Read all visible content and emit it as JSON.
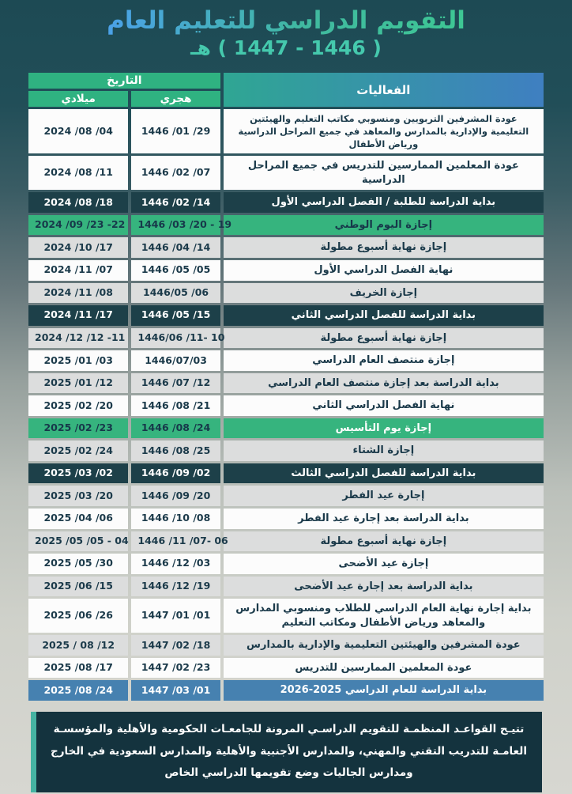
{
  "title": {
    "main": "التقويم الدراسي للتعليم العام",
    "years": "( 1446 - 1447 ) هـ"
  },
  "table": {
    "header": {
      "date_group": "التاريخ",
      "gregorian": "ميلادي",
      "hijri": "هجري",
      "events": "الفعاليات"
    },
    "rows": [
      {
        "gregorian": "2024 /08 /04",
        "hijri": "1446 /01 /29",
        "event": "عودة المشرفين التربويين ومنسوبي مكاتب التعليم والهيئتين التعليمية والإدارية بالمدارس والمعاهد في جميع المراحل الدراسية ورياض الأطفال",
        "style": "white",
        "small": true
      },
      {
        "gregorian": "2024 /08 /11",
        "hijri": "1446 /02 /07",
        "event": "عودة المعلمين الممارسين للتدريس في جميع المراحل الدراسية",
        "style": "white",
        "small": false
      },
      {
        "gregorian": "2024 /08 /18",
        "hijri": "1446 /02 /14",
        "event": "بداية الدراسة للطلبة / الفصل الدراسي الأول",
        "style": "navy",
        "small": false
      },
      {
        "gregorian": "2024 /09 /23 -22",
        "hijri": "1446 /03 /20 - 19",
        "event": "إجازة اليوم الوطني",
        "style": "green",
        "small": false
      },
      {
        "gregorian": "2024 /10 /17",
        "hijri": "1446 /04 /14",
        "event": "إجازة نهاية أسبوع مطولة",
        "style": "gray",
        "small": false
      },
      {
        "gregorian": "2024 /11 /07",
        "hijri": "1446 /05 /05",
        "event": "نهاية الفصل الدراسي الأول",
        "style": "white",
        "small": false
      },
      {
        "gregorian": "2024 /11 /08",
        "hijri": "1446/05 /06",
        "event": "إجازة الخريف",
        "style": "gray",
        "small": false
      },
      {
        "gregorian": "2024 /11 /17",
        "hijri": "1446 /05 /15",
        "event": "بداية الدراسة للفصل الدراسي الثاني",
        "style": "navy",
        "small": false
      },
      {
        "gregorian": "2024 /12 /12 -11",
        "hijri": "1446/06 /11- 10",
        "event": "إجازة نهاية أسبوع مطولة",
        "style": "gray",
        "small": false
      },
      {
        "gregorian": "2025 /01 /03",
        "hijri": "1446/07/03",
        "event": "إجازة منتصف العام الدراسي",
        "style": "white",
        "small": false
      },
      {
        "gregorian": "2025 /01 /12",
        "hijri": "1446 /07 /12",
        "event": "بداية الدراسة بعد إجازة منتصف العام الدراسي",
        "style": "gray",
        "small": false
      },
      {
        "gregorian": "2025 /02 /20",
        "hijri": "1446 /08 /21",
        "event": "نهاية الفصل الدراسي الثاني",
        "style": "white",
        "small": false
      },
      {
        "gregorian": "2025 /02 /23",
        "hijri": "1446 /08 /24",
        "event": "إجازة يوم التأسيس",
        "style": "green2",
        "small": false
      },
      {
        "gregorian": "2025 /02 /24",
        "hijri": "1446 /08 /25",
        "event": "إجازة الشتاء",
        "style": "gray",
        "small": false
      },
      {
        "gregorian": "2025 /03 /02",
        "hijri": "1446 /09 /02",
        "event": "بداية الدراسة للفصل الدراسي الثالث",
        "style": "navy",
        "small": false
      },
      {
        "gregorian": "2025 /03 /20",
        "hijri": "1446 /09 /20",
        "event": "إجارة عيد الفطر",
        "style": "gray",
        "small": false
      },
      {
        "gregorian": "2025 /04 /06",
        "hijri": "1446 /10 /08",
        "event": "بداية الدراسة بعد إجارة عيد الفطر",
        "style": "white",
        "small": false
      },
      {
        "gregorian": "2025 /05 /05 - 04",
        "hijri": "1446 /11 /07- 06",
        "event": "إجازة نهاية أسبوع مطولة",
        "style": "gray",
        "small": false
      },
      {
        "gregorian": "2025 /05 /30",
        "hijri": "1446 /12 /03",
        "event": "إجازة عيد الأضحى",
        "style": "white",
        "small": false
      },
      {
        "gregorian": "2025 /06 /15",
        "hijri": "1446 /12 /19",
        "event": "بداية الدراسة بعد إجارة عيد الأضحى",
        "style": "gray",
        "small": false
      },
      {
        "gregorian": "2025 /06 /26",
        "hijri": "1447 /01 /01",
        "event": "بداية إجارة نهاية العام الدراسي للطلاب ومنسوبي المدارس والمعاهد ورياض الأطفال ومكاتب التعليم",
        "style": "white",
        "small": false
      },
      {
        "gregorian": "2025 / 08 /12",
        "hijri": "1447 /02 /18",
        "event": "عودة المشرفين والهيئتين التعليمية والإدارية بالمدارس",
        "style": "gray",
        "small": false
      },
      {
        "gregorian": "2025 /08 /17",
        "hijri": "1447 /02 /23",
        "event": "عودة المعلمين الممارسين للتدريس",
        "style": "white",
        "small": false
      },
      {
        "gregorian": "2025 /08 /24",
        "hijri": "1447 /03 /01",
        "event": "بداية الدراسة للعام الدراسي 2025-2026",
        "style": "blue",
        "small": false
      }
    ]
  },
  "footer": {
    "note": "تتيـح القواعـد المنظمـة للتقويم الدراسـي المرونة للجامعـات الحكومية والأهلية والمؤسسـة العامـة للتدريب التقني والمهني، والمدارس الأجنبية والأهلية والمدارس السعودية في الخارج ومدارس الجاليات وضع تقويمها الدراسي الخاص"
  },
  "colors": {
    "header_green": "#2fb281",
    "events_header_gradient_start": "#2fa693",
    "events_header_gradient_end": "#3f7fc1",
    "navy_row": "#1d4049",
    "green_row": "#36b47e",
    "blue_row": "#4681b0",
    "gray_row": "#dcdddd",
    "white_row": "#fcfcfc",
    "footer_bg": "#14333e",
    "footer_strip": "#45b3a2",
    "title_gradient_blue": "#4ba1e8",
    "title_gradient_green": "#3ec794",
    "subtitle_teal": "#45c9ad",
    "page_top": "#1d4a54",
    "page_bottom": "#d7d7d1"
  }
}
